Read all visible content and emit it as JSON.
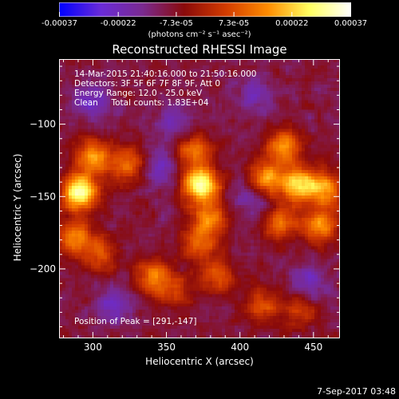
{
  "colorbar": {
    "tick_labels": [
      "-0.00037",
      "-0.00022",
      "-7.3e-05",
      "7.3e-05",
      "0.00022",
      "0.00037"
    ],
    "tick_values": [
      -0.00037,
      -0.00022,
      -7.3e-05,
      7.3e-05,
      0.00022,
      0.00037
    ],
    "range": [
      -0.00037,
      0.00037
    ],
    "units": "(photons cm⁻² s⁻¹ asec⁻²)",
    "colors": [
      "#0000ff",
      "#6a2bd8",
      "#7a2a90",
      "#8a0a0a",
      "#d43c00",
      "#ff8c00",
      "#ffff60",
      "#ffffff"
    ]
  },
  "title": "Reconstructed RHESSI Image",
  "overlay": {
    "line1": "14-Mar-2015 21:40:16.000 to 21:50:16.000",
    "line2": "Detectors: 3F 5F 6F 7F 8F 9F, Att 0",
    "line3": "Energy Range: 12.0 - 25.0 keV",
    "line4": "Clean     Total counts: 1.83E+04",
    "peak": "Position of Peak = [291,-147]"
  },
  "footer_date": "7-Sep-2017 03:48",
  "chart_data": {
    "type": "heatmap",
    "title": "Reconstructed RHESSI Image",
    "xlabel": "Heliocentric X (arcsec)",
    "ylabel": "Heliocentric Y (arcsec)",
    "xlim": [
      277,
      468
    ],
    "ylim": [
      -248,
      -55
    ],
    "xticks": [
      300,
      350,
      400,
      450
    ],
    "yticks": [
      -100,
      -150,
      -200
    ],
    "xtick_labels": [
      "300",
      "350",
      "400",
      "450"
    ],
    "ytick_labels": [
      "−100",
      "−150",
      "−200"
    ],
    "grid": false,
    "colormap": "rainbow-like (blue-purple-red-orange-yellow-white)",
    "value_range": [
      -0.00037,
      0.00037
    ],
    "peak_position": [
      291,
      -147
    ],
    "sources": [
      {
        "x": 291,
        "y": -147,
        "intensity": 0.00037
      },
      {
        "x": 300,
        "y": -123,
        "intensity": 0.00022
      },
      {
        "x": 323,
        "y": -128,
        "intensity": 0.00018
      },
      {
        "x": 288,
        "y": -178,
        "intensity": 0.0002
      },
      {
        "x": 305,
        "y": -190,
        "intensity": 0.00015
      },
      {
        "x": 373,
        "y": -142,
        "intensity": 0.00035
      },
      {
        "x": 368,
        "y": -118,
        "intensity": 0.0002
      },
      {
        "x": 380,
        "y": -165,
        "intensity": 0.0002
      },
      {
        "x": 372,
        "y": -183,
        "intensity": 0.00016
      },
      {
        "x": 418,
        "y": -138,
        "intensity": 0.00025
      },
      {
        "x": 440,
        "y": -142,
        "intensity": 0.00028
      },
      {
        "x": 458,
        "y": -145,
        "intensity": 0.00022
      },
      {
        "x": 430,
        "y": -115,
        "intensity": 0.0002
      },
      {
        "x": 428,
        "y": -168,
        "intensity": 0.00018
      },
      {
        "x": 455,
        "y": -170,
        "intensity": 0.00022
      },
      {
        "x": 340,
        "y": -205,
        "intensity": 0.00018
      },
      {
        "x": 355,
        "y": -215,
        "intensity": 0.00014
      },
      {
        "x": 385,
        "y": -205,
        "intensity": 0.00015
      },
      {
        "x": 415,
        "y": -225,
        "intensity": 0.00015
      },
      {
        "x": 440,
        "y": -228,
        "intensity": 0.00012
      }
    ],
    "dark_regions": [
      {
        "x": 348,
        "y": -130
      },
      {
        "x": 355,
        "y": -100
      },
      {
        "x": 410,
        "y": -80
      },
      {
        "x": 410,
        "y": -150
      },
      {
        "x": 447,
        "y": -210
      },
      {
        "x": 315,
        "y": -225
      },
      {
        "x": 300,
        "y": -85
      }
    ]
  }
}
